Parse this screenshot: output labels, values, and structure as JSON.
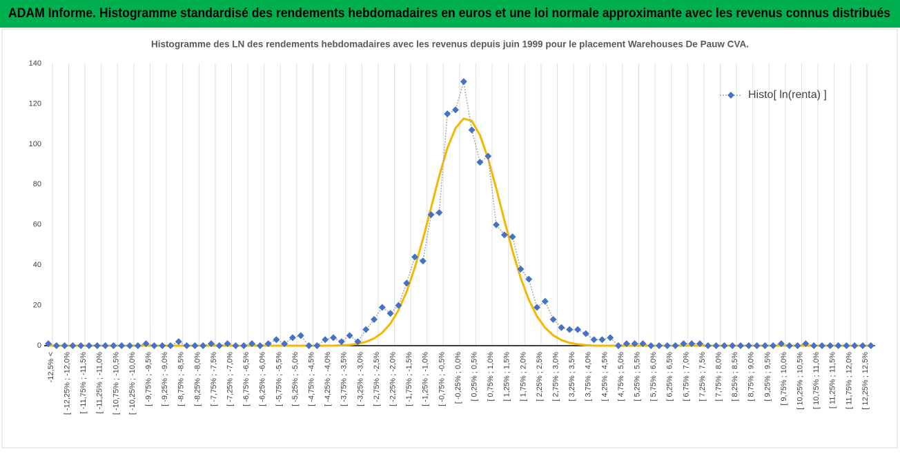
{
  "header": {
    "title": "ADAM Informe. Histogramme standardisé des rendements hebdomadaires en euros et une loi normale approximante avec les revenus connus distribués"
  },
  "chart_data": {
    "type": "line",
    "title": "Histogramme des LN des rendements hebdomadaires avec les revenus depuis juin 1999 pour le placement Warehouses De Pauw CVA.",
    "categories": [
      "-12,5% <",
      null,
      "[ -12,25% ; -12,0%",
      null,
      "[ -11,75% ; -11,5%",
      null,
      "[ -11,25% ; -11,0%",
      null,
      "[ -10,75% ; -10,5%",
      null,
      "[ -10,25% ; -10,0%",
      null,
      "[ -9,75% ; -9,5%",
      null,
      "[ -9,25% ; -9,0%",
      null,
      "[ -8,75% ; -8,5%",
      null,
      "[ -8,25% ; -8,0%",
      null,
      "[ -7,75% ; -7,5%",
      null,
      "[ -7,25% ; -7,0%",
      null,
      "[ -6,75% ; -6,5%",
      null,
      "[ -6,25% ; -6,0%",
      null,
      "[ -5,75% ; -5,5%",
      null,
      "[ -5,25% ; -5,0%",
      null,
      "[ -4,75% ; -4,5%",
      null,
      "[ -4,25% ; -4,0%",
      null,
      "[ -3,75% ; -3,5%",
      null,
      "[ -3,25% ; -3,0%",
      null,
      "[ -2,75% ; -2,5%",
      null,
      "[ -2,25% ; -2,0%",
      null,
      "[ -1,75% ; -1,5%",
      null,
      "[ -1,25% ; -1,0%",
      null,
      "[ -0,75% ; -0,5%",
      null,
      "[ -0,25% ; 0,0%",
      null,
      "[ 0,25% ; 0,5%",
      null,
      "[ 0,75% ; 1,0%",
      null,
      "[ 1,25% ; 1,5%",
      null,
      "[ 1,75% ; 2,0%",
      null,
      "[ 2,25% ; 2,5%",
      null,
      "[ 2,75% ; 3,0%",
      null,
      "[ 3,25% ; 3,5%",
      null,
      "[ 3,75% ; 4,0%",
      null,
      "[ 4,25% ; 4,5%",
      null,
      "[ 4,75% ; 5,0%",
      null,
      "[ 5,25% ; 5,5%",
      null,
      "[ 5,75% ; 6,0%",
      null,
      "[ 6,25% ; 6,5%",
      null,
      "[ 6,75% ; 7,0%",
      null,
      "[ 7,25% ; 7,5%",
      null,
      "[ 7,75% ; 8,0%",
      null,
      "[ 8,25% ; 8,5%",
      null,
      "[ 8,75% ; 9,0%",
      null,
      "[ 9,25% ; 9,5%",
      null,
      "[ 9,75% ; 10,0%",
      null,
      "[ 10,25% ; 10,5%",
      null,
      "[ 10,75% ; 11,0%",
      null,
      "[ 11,25% ; 11,5%",
      null,
      "[ 11,75% ; 12,0%",
      null,
      "[ 12,25% ; 12,5%",
      null
    ],
    "series": [
      {
        "name": "Histo[ ln(renta) ]",
        "color": "#4472c4",
        "line_color": "#a6a6a6",
        "line_style": "dotted",
        "marker": "diamond",
        "values": [
          1,
          0,
          0,
          0,
          0,
          0,
          0,
          0,
          0,
          0,
          0,
          0,
          1,
          0,
          0,
          0,
          2,
          0,
          0,
          0,
          1,
          0,
          1,
          0,
          0,
          1,
          0,
          1,
          3,
          1,
          4,
          5,
          0,
          0,
          3,
          4,
          2,
          5,
          2,
          8,
          13,
          19,
          16,
          20,
          31,
          44,
          42,
          65,
          66,
          115,
          117,
          131,
          107,
          91,
          94,
          60,
          55,
          54,
          38,
          33,
          19,
          22,
          13,
          9,
          8,
          8,
          6,
          3,
          3,
          4,
          0,
          1,
          1,
          1,
          0,
          0,
          0,
          0,
          1,
          1,
          1,
          0,
          0,
          0,
          0,
          0,
          0,
          0,
          0,
          0,
          1,
          0,
          0,
          1,
          0,
          0,
          0,
          0,
          0,
          0,
          0,
          0
        ]
      },
      {
        "color": "#f5b800",
        "line_color": "#f5b800",
        "line_style": "solid",
        "marker": "none",
        "values": [
          0,
          0,
          0,
          0,
          0,
          0,
          0,
          0,
          0,
          0,
          0,
          0,
          0,
          0,
          0,
          0,
          0,
          0,
          0,
          0,
          0,
          0,
          0,
          0,
          0,
          0,
          0,
          0,
          0,
          0,
          0,
          0,
          0,
          0,
          0,
          0,
          0.2,
          0.4,
          0.9,
          1.9,
          3.6,
          6.4,
          10.9,
          17.6,
          26.8,
          38.7,
          52.9,
          68.5,
          84.2,
          98,
          107.9,
          112.7,
          111.5,
          104.5,
          92.8,
          78,
          62.2,
          47,
          33.6,
          22.8,
          14.6,
          8.9,
          5.1,
          2.8,
          1.4,
          0.7,
          0.3,
          0,
          0,
          0,
          0,
          0,
          0,
          0,
          0,
          0,
          0,
          0,
          0,
          0,
          0,
          0,
          0,
          0,
          0,
          0,
          0,
          0,
          0,
          0,
          0,
          0,
          0,
          0,
          0,
          0,
          0,
          0,
          0,
          0,
          0,
          0
        ]
      }
    ],
    "ylim": [
      0,
      140
    ],
    "yticks": [
      0,
      20,
      40,
      60,
      80,
      100,
      120,
      140
    ],
    "xgrid": true,
    "legend": "top-right"
  }
}
